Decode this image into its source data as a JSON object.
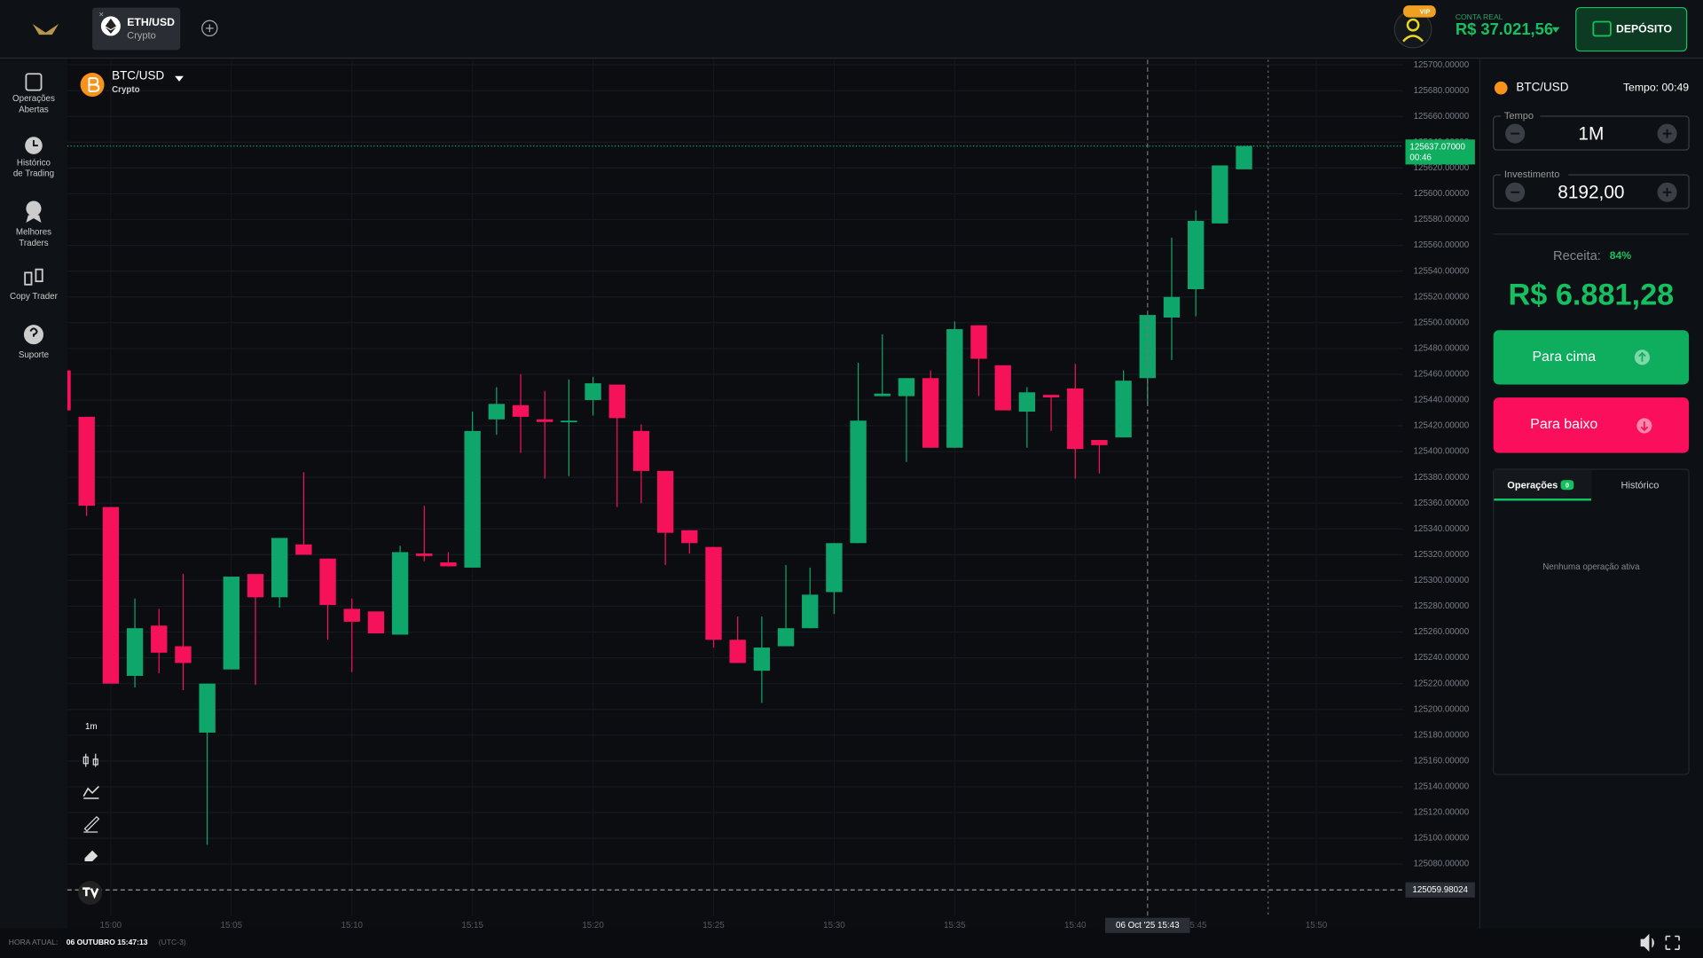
{
  "header": {
    "tab": {
      "symbol": "ETH/USD",
      "market": "Crypto"
    },
    "vip_badge": "VIP",
    "account_type": "CONTA REAL",
    "balance": "R$ 37.021,56",
    "deposit_button": "DEPÓSITO"
  },
  "sidebar": [
    [
      "Operações",
      "Abertas"
    ],
    [
      "Histórico",
      "de Trading"
    ],
    [
      "Melhores",
      "Traders"
    ],
    [
      "Copy Trader"
    ],
    [
      "Suporte"
    ]
  ],
  "chart_header": {
    "symbol": "BTC/USD",
    "market": "Crypto",
    "interval": "1m"
  },
  "chart_data": {
    "type": "candlestick",
    "categories": [
      null,
      null,
      "15:00",
      null,
      null,
      null,
      null,
      "15:05",
      null,
      null,
      null,
      null,
      "15:10",
      null,
      null,
      null,
      null,
      "15:15",
      null,
      null,
      null,
      null,
      "15:20",
      null,
      null,
      null,
      null,
      "15:25",
      null,
      null,
      null,
      null,
      "15:30",
      null,
      null,
      null,
      null,
      "15:35",
      null,
      null,
      null,
      null,
      "15:40",
      null,
      null,
      null,
      null,
      "15:45",
      null,
      null,
      null,
      null,
      "15:50"
    ],
    "open": [
      125463,
      125427,
      125357,
      125226,
      125265,
      125249,
      125182,
      125231,
      125305,
      125287,
      125328,
      125317,
      125278,
      125276,
      125258,
      125321,
      125314,
      125310,
      125425,
      125436,
      125425,
      125423,
      125440,
      125452,
      125416,
      125385,
      125339,
      125326,
      125254,
      125230,
      125249,
      125263,
      125291,
      125329,
      125443,
      125443,
      125457,
      125403,
      125498,
      125467,
      125431,
      125444,
      125449,
      125409,
      125411,
      125457,
      125504,
      125526,
      125577,
      125619,
      null,
      null,
      null
    ],
    "high": [
      125463,
      125427,
      125357,
      125286,
      125278,
      125305,
      125220,
      125303,
      125305,
      125333,
      125384,
      125317,
      125286,
      125276,
      125327,
      125358,
      125322,
      125431,
      125450,
      125460,
      125447,
      125456,
      125458,
      125452,
      125421,
      125385,
      125339,
      125326,
      125272,
      125272,
      125312,
      125310,
      125329,
      125469,
      125491,
      125457,
      125463,
      125501,
      125498,
      125467,
      125450,
      125444,
      125468,
      125409,
      125463,
      125506,
      125566,
      125587,
      125622,
      125637.07,
      null,
      null,
      null
    ],
    "low": [
      125432,
      125350,
      125220,
      125217,
      125228,
      125215,
      125095,
      125231,
      125219,
      125279,
      125320,
      125254,
      125229,
      125259,
      125258,
      125315,
      125311,
      125310,
      125413,
      125399,
      125379,
      125381,
      125428,
      125357,
      125360,
      125312,
      125321,
      125248,
      125236,
      125205,
      125249,
      125263,
      125274,
      125329,
      125443,
      125392,
      125403,
      125403,
      125443,
      125432,
      125403,
      125416,
      125379,
      125383,
      125411,
      125437,
      125471,
      125505,
      125577,
      125619,
      null,
      null,
      null
    ],
    "close": [
      125432,
      125358,
      125220,
      125263,
      125244,
      125236,
      125220,
      125303,
      125287,
      125333,
      125320,
      125281,
      125268,
      125259,
      125322,
      125319,
      125311,
      125416,
      125437,
      125427,
      125423,
      125424,
      125453,
      125426,
      125385,
      125337,
      125329,
      125254,
      125236,
      125248,
      125263,
      125289,
      125329,
      125424,
      125445,
      125457,
      125403,
      125495,
      125472,
      125432,
      125446,
      125442,
      125402,
      125405,
      125455,
      125506,
      125520,
      125579,
      125622,
      125637.07,
      null,
      null,
      null
    ],
    "up_color": "#0ea66a",
    "down_color": "#f5125a",
    "ylim": [
      125040,
      125704
    ],
    "yticks": [
      {
        "value": 125080,
        "label": "125080.00000"
      },
      {
        "value": 125100,
        "label": "125100.00000"
      },
      {
        "value": 125120,
        "label": "125120.00000"
      },
      {
        "value": 125140,
        "label": "125140.00000"
      },
      {
        "value": 125160,
        "label": "125160.00000"
      },
      {
        "value": 125180,
        "label": "125180.00000"
      },
      {
        "value": 125200,
        "label": "125200.00000"
      },
      {
        "value": 125220,
        "label": "125220.00000"
      },
      {
        "value": 125240,
        "label": "125240.00000"
      },
      {
        "value": 125260,
        "label": "125260.00000"
      },
      {
        "value": 125280,
        "label": "125280.00000"
      },
      {
        "value": 125300,
        "label": "125300.00000"
      },
      {
        "value": 125320,
        "label": "125320.00000"
      },
      {
        "value": 125340,
        "label": "125340.00000"
      },
      {
        "value": 125360,
        "label": "125360.00000"
      },
      {
        "value": 125380,
        "label": "125380.00000"
      },
      {
        "value": 125400,
        "label": "125400.00000"
      },
      {
        "value": 125420,
        "label": "125420.00000"
      },
      {
        "value": 125440,
        "label": "125440.00000"
      },
      {
        "value": 125460,
        "label": "125460.00000"
      },
      {
        "value": 125480,
        "label": "125480.00000"
      },
      {
        "value": 125500,
        "label": "125500.00000"
      },
      {
        "value": 125520,
        "label": "125520.00000"
      },
      {
        "value": 125540,
        "label": "125540.00000"
      },
      {
        "value": 125560,
        "label": "125560.00000"
      },
      {
        "value": 125580,
        "label": "125580.00000"
      },
      {
        "value": 125600,
        "label": "125600.00000"
      },
      {
        "value": 125620,
        "label": "125620.00000"
      },
      {
        "value": 125640,
        "label": "125640.00000"
      },
      {
        "value": 125660,
        "label": "125660.00000"
      },
      {
        "value": 125680,
        "label": "125680.00000"
      },
      {
        "value": 125700,
        "label": "125700.00000"
      }
    ],
    "grid": true,
    "last_price": {
      "value": 125637.07,
      "label": "125637.07000"
    },
    "countdown": "00:46",
    "crosshair": {
      "price": {
        "value": 125059.98024,
        "label": "125059.98024"
      },
      "time": "06 Oct '25  15:43"
    }
  },
  "trade_panel": {
    "symbol": "BTC/USD",
    "timer": "Tempo: 00:49",
    "time_label": "Tempo",
    "time_value": "1M",
    "investment_label": "Investimento",
    "investment_value": "8192,00",
    "revenue_label": "Receita:",
    "revenue_percent": "84%",
    "revenue_value": "R$ 6.881,28",
    "up_button": "Para cima",
    "down_button": "Para baixo",
    "tabs": [
      "Operações",
      "Histórico"
    ],
    "open_count": "0",
    "empty_message": "Nenhuma operação ativa"
  },
  "footer": {
    "label": "HORA ATUAL:",
    "time": "06 OUTUBRO 15:47:13",
    "timezone": "(UTC-3)"
  }
}
